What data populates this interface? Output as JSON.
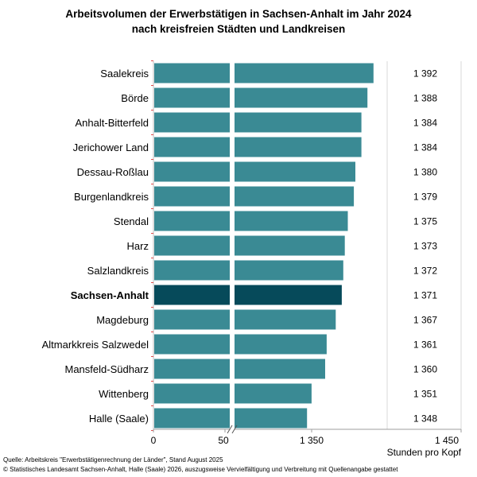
{
  "title_line1": "Arbeitsvolumen der Erwerbstätigen in Sachsen-Anhalt im Jahr 2024",
  "title_line2": "nach kreisfreien Städten und Landkreisen",
  "source": "Quelle: Arbeitskreis \"Erwerbstätigenrechnung der Länder\", Stand August 2025",
  "copyright": "© Statistisches Landesamt Sachsen-Anhalt, Halle (Saale) 2026, auszugsweise Vervielfältigung und Verbreitung mit Quellenangabe gestattet",
  "colors": {
    "bar": "#3a8a94",
    "highlight": "#064a5a",
    "grid": "#d9d9d9",
    "tick": "#e05050"
  },
  "chart_data": {
    "type": "bar",
    "orientation": "horizontal",
    "axis_break": true,
    "title": "Arbeitsvolumen der Erwerbstätigen in Sachsen-Anhalt im Jahr 2024 nach kreisfreien Städten und Landkreisen",
    "xlabel": "Stunden pro Kopf",
    "xlim": [
      0,
      1450
    ],
    "break_segment": [
      0,
      50
    ],
    "main_segment": [
      1300,
      1450
    ],
    "x_tick_labels": [
      "0",
      "50",
      "1 350",
      "1 450"
    ],
    "highlight_category": "Sachsen-Anhalt",
    "categories": [
      "Saalekreis",
      "Börde",
      "Anhalt-Bitterfeld",
      "Jerichower Land",
      "Dessau-Roßlau",
      "Burgenlandkreis",
      "Stendal",
      "Harz",
      "Salzlandkreis",
      "Sachsen-Anhalt",
      "Magdeburg",
      "Altmarkkreis Salzwedel",
      "Mansfeld-Südharz",
      "Wittenberg",
      "Halle (Saale)"
    ],
    "values": [
      1392,
      1388,
      1384,
      1384,
      1380,
      1379,
      1375,
      1373,
      1372,
      1371,
      1367,
      1361,
      1360,
      1351,
      1348
    ],
    "value_labels": [
      "1 392",
      "1 388",
      "1 384",
      "1 384",
      "1 380",
      "1 379",
      "1 375",
      "1 373",
      "1 372",
      "1 371",
      "1 367",
      "1 361",
      "1 360",
      "1 351",
      "1 348"
    ]
  }
}
